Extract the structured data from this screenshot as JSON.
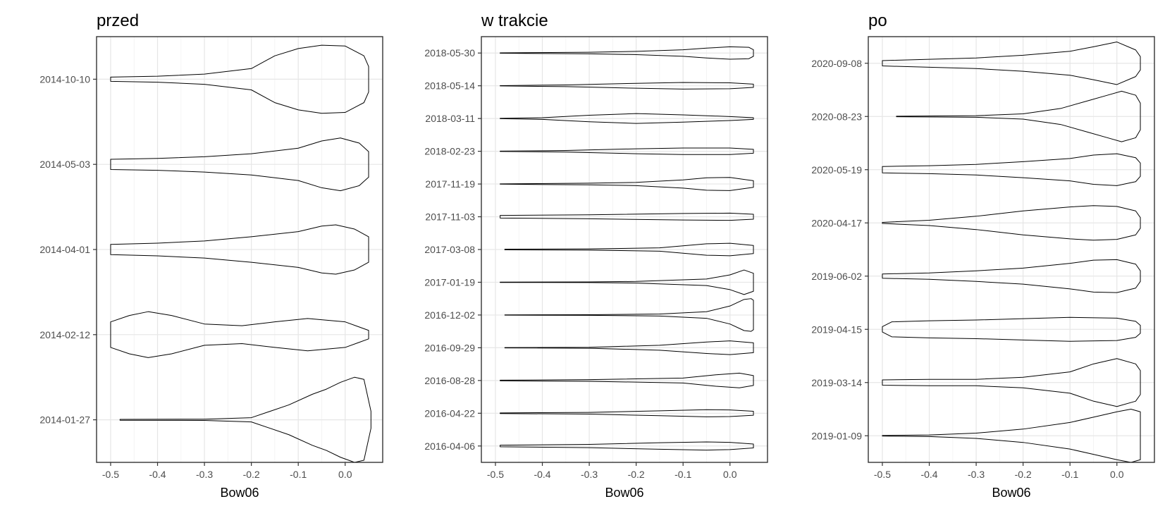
{
  "chart_data": [
    {
      "type": "violin",
      "title": "przed",
      "xlabel": "Bow06",
      "ylabel": "",
      "xlim": [
        -0.53,
        0.08
      ],
      "xticks": [
        -0.5,
        -0.4,
        -0.3,
        -0.2,
        -0.1,
        0.0
      ],
      "xtick_labels": [
        "-0.5",
        "-0.4",
        "-0.3",
        "-0.2",
        "-0.1",
        "0.0"
      ],
      "grid": true,
      "categories": [
        "2014-10-10",
        "2014-05-03",
        "2014-04-01",
        "2014-02-12",
        "2014-01-27"
      ],
      "violins": [
        {
          "date": "2014-10-10",
          "min": -0.5,
          "max": 0.05,
          "x": [
            -0.5,
            -0.4,
            -0.3,
            -0.2,
            -0.15,
            -0.1,
            -0.05,
            0.0,
            0.04,
            0.05
          ],
          "w": [
            0.05,
            0.07,
            0.12,
            0.25,
            0.55,
            0.72,
            0.8,
            0.78,
            0.55,
            0.3
          ]
        },
        {
          "date": "2014-05-03",
          "min": -0.5,
          "max": 0.05,
          "x": [
            -0.5,
            -0.4,
            -0.3,
            -0.2,
            -0.1,
            -0.05,
            -0.01,
            0.03,
            0.05
          ],
          "w": [
            0.12,
            0.14,
            0.18,
            0.25,
            0.38,
            0.55,
            0.62,
            0.5,
            0.3
          ]
        },
        {
          "date": "2014-04-01",
          "min": -0.5,
          "max": 0.05,
          "x": [
            -0.5,
            -0.4,
            -0.3,
            -0.2,
            -0.1,
            -0.05,
            -0.02,
            0.02,
            0.05
          ],
          "w": [
            0.12,
            0.15,
            0.2,
            0.3,
            0.42,
            0.55,
            0.58,
            0.48,
            0.3
          ]
        },
        {
          "date": "2014-02-12",
          "min": -0.5,
          "max": 0.05,
          "x": [
            -0.5,
            -0.46,
            -0.42,
            -0.37,
            -0.3,
            -0.22,
            -0.15,
            -0.08,
            0.0,
            0.05
          ],
          "w": [
            0.3,
            0.45,
            0.54,
            0.45,
            0.25,
            0.21,
            0.3,
            0.38,
            0.3,
            0.1
          ]
        },
        {
          "date": "2014-01-27",
          "min": -0.48,
          "max": 0.055,
          "x": [
            -0.48,
            -0.3,
            -0.2,
            -0.12,
            -0.07,
            -0.04,
            -0.01,
            0.02,
            0.04,
            0.055
          ],
          "w": [
            0.01,
            0.015,
            0.05,
            0.35,
            0.6,
            0.72,
            0.88,
            1.0,
            0.95,
            0.2
          ]
        }
      ]
    },
    {
      "type": "violin",
      "title": "w trakcie",
      "xlabel": "Bow06",
      "ylabel": "",
      "xlim": [
        -0.53,
        0.08
      ],
      "xticks": [
        -0.5,
        -0.4,
        -0.3,
        -0.2,
        -0.1,
        0.0
      ],
      "xtick_labels": [
        "-0.5",
        "-0.4",
        "-0.3",
        "-0.2",
        "-0.1",
        "0.0"
      ],
      "grid": true,
      "categories": [
        "2018-05-30",
        "2018-05-14",
        "2018-03-11",
        "2018-02-23",
        "2017-11-19",
        "2017-11-03",
        "2017-03-08",
        "2017-01-19",
        "2016-12-02",
        "2016-09-29",
        "2016-08-28",
        "2016-04-22",
        "2016-04-06"
      ],
      "violins": [
        {
          "date": "2018-05-30",
          "min": -0.49,
          "max": 0.05,
          "x": [
            -0.49,
            -0.3,
            -0.2,
            -0.1,
            -0.05,
            0.0,
            0.04,
            0.05
          ],
          "w": [
            0.01,
            0.05,
            0.1,
            0.2,
            0.3,
            0.38,
            0.35,
            0.2
          ]
        },
        {
          "date": "2018-05-14",
          "min": -0.49,
          "max": 0.05,
          "x": [
            -0.49,
            -0.35,
            -0.2,
            -0.1,
            0.0,
            0.05
          ],
          "w": [
            0.01,
            0.05,
            0.15,
            0.2,
            0.18,
            0.1
          ]
        },
        {
          "date": "2018-03-11",
          "min": -0.49,
          "max": 0.05,
          "x": [
            -0.49,
            -0.4,
            -0.3,
            -0.2,
            -0.1,
            0.0,
            0.05
          ],
          "w": [
            0.01,
            0.05,
            0.2,
            0.3,
            0.22,
            0.12,
            0.05
          ]
        },
        {
          "date": "2018-02-23",
          "min": -0.49,
          "max": 0.05,
          "x": [
            -0.49,
            -0.35,
            -0.2,
            -0.1,
            0.0,
            0.05
          ],
          "w": [
            0.01,
            0.05,
            0.15,
            0.2,
            0.2,
            0.12
          ]
        },
        {
          "date": "2017-11-19",
          "min": -0.49,
          "max": 0.05,
          "x": [
            -0.49,
            -0.3,
            -0.2,
            -0.1,
            -0.05,
            0.0,
            0.05
          ],
          "w": [
            0.01,
            0.05,
            0.1,
            0.25,
            0.38,
            0.4,
            0.2
          ]
        },
        {
          "date": "2017-11-03",
          "min": -0.49,
          "max": 0.05,
          "x": [
            -0.49,
            -0.3,
            -0.1,
            0.0,
            0.05
          ],
          "w": [
            0.08,
            0.12,
            0.2,
            0.22,
            0.15
          ]
        },
        {
          "date": "2017-03-08",
          "min": -0.48,
          "max": 0.05,
          "x": [
            -0.48,
            -0.3,
            -0.15,
            -0.05,
            0.0,
            0.05
          ],
          "w": [
            0.02,
            0.04,
            0.1,
            0.35,
            0.38,
            0.25
          ]
        },
        {
          "date": "2017-01-19",
          "min": -0.49,
          "max": 0.05,
          "x": [
            -0.49,
            -0.3,
            -0.2,
            -0.05,
            0.0,
            0.03,
            0.05
          ],
          "w": [
            0.01,
            0.02,
            0.05,
            0.2,
            0.45,
            0.75,
            0.55
          ]
        },
        {
          "date": "2016-12-02",
          "min": -0.48,
          "max": 0.05,
          "x": [
            -0.48,
            -0.3,
            -0.15,
            -0.05,
            0.0,
            0.03,
            0.045,
            0.05
          ],
          "w": [
            0.01,
            0.02,
            0.06,
            0.2,
            0.55,
            0.95,
            1.0,
            0.9
          ]
        },
        {
          "date": "2016-09-29",
          "min": -0.48,
          "max": 0.05,
          "x": [
            -0.48,
            -0.3,
            -0.15,
            -0.05,
            0.0,
            0.05
          ],
          "w": [
            0.01,
            0.03,
            0.15,
            0.35,
            0.42,
            0.3
          ]
        },
        {
          "date": "2016-08-28",
          "min": -0.49,
          "max": 0.05,
          "x": [
            -0.49,
            -0.3,
            -0.1,
            -0.03,
            0.02,
            0.05
          ],
          "w": [
            0.02,
            0.05,
            0.15,
            0.35,
            0.45,
            0.3
          ]
        },
        {
          "date": "2016-04-22",
          "min": -0.49,
          "max": 0.05,
          "x": [
            -0.49,
            -0.3,
            -0.15,
            -0.05,
            0.0,
            0.05
          ],
          "w": [
            0.02,
            0.05,
            0.15,
            0.22,
            0.2,
            0.12
          ]
        },
        {
          "date": "2016-04-06",
          "min": -0.49,
          "max": 0.05,
          "x": [
            -0.49,
            -0.3,
            -0.15,
            -0.05,
            0.0,
            0.05
          ],
          "w": [
            0.05,
            0.1,
            0.2,
            0.25,
            0.22,
            0.12
          ]
        }
      ]
    },
    {
      "type": "violin",
      "title": "po",
      "xlabel": "Bow06",
      "ylabel": "",
      "xlim": [
        -0.53,
        0.08
      ],
      "xticks": [
        -0.5,
        -0.4,
        -0.3,
        -0.2,
        -0.1,
        0.0
      ],
      "xtick_labels": [
        "-0.5",
        "-0.4",
        "-0.3",
        "-0.2",
        "-0.1",
        "0.0"
      ],
      "grid": true,
      "categories": [
        "2020-09-08",
        "2020-08-23",
        "2020-05-19",
        "2020-04-17",
        "2019-06-02",
        "2019-04-15",
        "2019-03-14",
        "2019-01-09"
      ],
      "violins": [
        {
          "date": "2020-09-08",
          "min": -0.5,
          "max": 0.05,
          "x": [
            -0.5,
            -0.4,
            -0.3,
            -0.2,
            -0.1,
            -0.05,
            0.0,
            0.04,
            0.05
          ],
          "w": [
            0.1,
            0.15,
            0.2,
            0.3,
            0.45,
            0.62,
            0.8,
            0.5,
            0.25
          ]
        },
        {
          "date": "2020-08-23",
          "min": -0.47,
          "max": 0.05,
          "x": [
            -0.47,
            -0.3,
            -0.2,
            -0.12,
            -0.06,
            -0.02,
            0.01,
            0.04,
            0.05
          ],
          "w": [
            0.01,
            0.03,
            0.1,
            0.3,
            0.6,
            0.8,
            0.95,
            0.8,
            0.5
          ]
        },
        {
          "date": "2020-05-19",
          "min": -0.5,
          "max": 0.05,
          "x": [
            -0.5,
            -0.4,
            -0.3,
            -0.2,
            -0.1,
            -0.05,
            0.0,
            0.04,
            0.05
          ],
          "w": [
            0.12,
            0.15,
            0.2,
            0.3,
            0.42,
            0.55,
            0.6,
            0.45,
            0.25
          ]
        },
        {
          "date": "2020-04-17",
          "min": -0.5,
          "max": 0.05,
          "x": [
            -0.5,
            -0.4,
            -0.3,
            -0.2,
            -0.1,
            -0.05,
            0.0,
            0.04,
            0.05
          ],
          "w": [
            0.02,
            0.1,
            0.25,
            0.45,
            0.6,
            0.65,
            0.62,
            0.45,
            0.2
          ]
        },
        {
          "date": "2019-06-02",
          "min": -0.5,
          "max": 0.05,
          "x": [
            -0.5,
            -0.4,
            -0.3,
            -0.2,
            -0.1,
            -0.05,
            0.0,
            0.04,
            0.05
          ],
          "w": [
            0.08,
            0.12,
            0.2,
            0.3,
            0.48,
            0.6,
            0.62,
            0.45,
            0.2
          ]
        },
        {
          "date": "2019-04-15",
          "min": -0.5,
          "max": 0.05,
          "x": [
            -0.5,
            -0.48,
            -0.4,
            -0.3,
            -0.2,
            -0.1,
            0.0,
            0.04,
            0.05
          ],
          "w": [
            0.1,
            0.28,
            0.32,
            0.35,
            0.4,
            0.45,
            0.42,
            0.3,
            0.15
          ]
        },
        {
          "date": "2019-03-14",
          "min": -0.5,
          "max": 0.05,
          "x": [
            -0.5,
            -0.4,
            -0.3,
            -0.2,
            -0.1,
            -0.05,
            0.0,
            0.04,
            0.05
          ],
          "w": [
            0.1,
            0.12,
            0.12,
            0.2,
            0.4,
            0.7,
            0.9,
            0.7,
            0.45
          ]
        },
        {
          "date": "2019-01-09",
          "min": -0.5,
          "max": 0.05,
          "x": [
            -0.5,
            -0.4,
            -0.3,
            -0.2,
            -0.1,
            -0.05,
            0.0,
            0.03,
            0.05
          ],
          "w": [
            0.01,
            0.03,
            0.1,
            0.25,
            0.5,
            0.7,
            0.9,
            1.0,
            0.9
          ]
        }
      ]
    }
  ]
}
